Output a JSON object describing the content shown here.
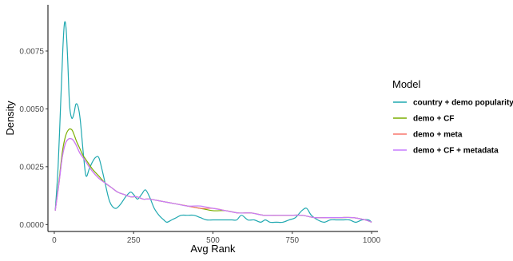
{
  "chart_data": {
    "type": "line",
    "title": "",
    "xlabel": "Avg Rank",
    "ylabel": "Density",
    "xlim": [
      -20,
      1020
    ],
    "ylim": [
      -0.0003,
      0.0095
    ],
    "x_ticks": [
      0,
      250,
      500,
      750,
      1000
    ],
    "y_ticks": [
      0.0,
      0.0025,
      0.005,
      0.0075
    ],
    "x_tick_labels": [
      "0",
      "250",
      "500",
      "750",
      "1000"
    ],
    "y_tick_labels": [
      "0.0000",
      "0.0025",
      "0.0050",
      "0.0075"
    ],
    "grid": false,
    "legend": {
      "title": "Model",
      "position": "right"
    },
    "series": [
      {
        "name": "country + demo popularity",
        "color": "#1FA8B0",
        "x": [
          3,
          12,
          20,
          27,
          32,
          37,
          42,
          48,
          55,
          62,
          68,
          75,
          82,
          92,
          100,
          110,
          120,
          130,
          140,
          150,
          160,
          172,
          182,
          195,
          210,
          225,
          240,
          250,
          262,
          275,
          287,
          300,
          315,
          330,
          345,
          355,
          370,
          385,
          400,
          420,
          440,
          460,
          480,
          500,
          520,
          540,
          560,
          575,
          590,
          610,
          630,
          650,
          665,
          680,
          700,
          720,
          740,
          760,
          780,
          795,
          810,
          830,
          850,
          870,
          890,
          910,
          930,
          950,
          970,
          990,
          1000
        ],
        "y": [
          0.0006,
          0.0025,
          0.0052,
          0.0076,
          0.0087,
          0.0085,
          0.0072,
          0.0052,
          0.0046,
          0.0048,
          0.0052,
          0.0051,
          0.0045,
          0.003,
          0.0021,
          0.0024,
          0.0027,
          0.0029,
          0.0029,
          0.0024,
          0.0018,
          0.0011,
          0.0008,
          0.0007,
          0.0009,
          0.0012,
          0.0014,
          0.0013,
          0.0011,
          0.0013,
          0.0015,
          0.0012,
          0.0007,
          0.0004,
          0.0002,
          0.0001,
          0.0002,
          0.0003,
          0.0004,
          0.0004,
          0.0004,
          0.0003,
          0.0002,
          0.0002,
          0.0002,
          0.0002,
          0.0002,
          0.0002,
          0.0004,
          0.0002,
          0.0002,
          0.0001,
          0.0002,
          0.0001,
          0.0001,
          0.0001,
          0.0002,
          0.0003,
          0.0006,
          0.0007,
          0.0004,
          0.0002,
          0.0001,
          0.0002,
          0.0002,
          0.0002,
          0.0002,
          0.0001,
          0.0002,
          0.0002,
          0.0001
        ]
      },
      {
        "name": "demo + CF",
        "color": "#7CAE00",
        "x": [
          3,
          15,
          25,
          35,
          45,
          55,
          62,
          70,
          80,
          90,
          100,
          120,
          140,
          160,
          180,
          200,
          220,
          240,
          260,
          280,
          300,
          340,
          380,
          420,
          460,
          500,
          540,
          580,
          620,
          660,
          700,
          740,
          780,
          820,
          860,
          900,
          940,
          980,
          1000
        ],
        "y": [
          0.0006,
          0.0019,
          0.0031,
          0.0038,
          0.0041,
          0.0041,
          0.0039,
          0.0036,
          0.0033,
          0.003,
          0.0028,
          0.0024,
          0.0021,
          0.0018,
          0.0016,
          0.0014,
          0.0013,
          0.0012,
          0.0012,
          0.0011,
          0.0011,
          0.001,
          0.0009,
          0.0008,
          0.0007,
          0.0006,
          0.0006,
          0.0005,
          0.0005,
          0.0004,
          0.0004,
          0.0004,
          0.0004,
          0.0003,
          0.0003,
          0.0003,
          0.0003,
          0.0002,
          0.0001
        ]
      },
      {
        "name": "demo + meta",
        "color": "#F8766D",
        "x": [
          3,
          15,
          25,
          35,
          45,
          55,
          62,
          70,
          80,
          90,
          100,
          120,
          140,
          160,
          180,
          200,
          220,
          240,
          260,
          280,
          300,
          340,
          380,
          420,
          460,
          500,
          540,
          580,
          620,
          660,
          700,
          740,
          780,
          820,
          860,
          900,
          940,
          980,
          1000
        ],
        "y": [
          0.0006,
          0.0018,
          0.0029,
          0.0035,
          0.0037,
          0.0037,
          0.0036,
          0.0034,
          0.0031,
          0.0029,
          0.0027,
          0.0023,
          0.002,
          0.0018,
          0.0016,
          0.0014,
          0.0013,
          0.0012,
          0.0012,
          0.0011,
          0.0011,
          0.001,
          0.0009,
          0.0008,
          0.0007,
          0.0007,
          0.0006,
          0.0005,
          0.0005,
          0.0004,
          0.0004,
          0.0004,
          0.0004,
          0.0003,
          0.0003,
          0.0003,
          0.0003,
          0.0002,
          0.0001
        ]
      },
      {
        "name": "demo + CF + metadata",
        "color": "#C77CFF",
        "x": [
          3,
          15,
          25,
          35,
          45,
          55,
          62,
          70,
          80,
          90,
          100,
          120,
          140,
          160,
          180,
          200,
          220,
          240,
          260,
          280,
          300,
          340,
          380,
          420,
          460,
          500,
          540,
          580,
          620,
          660,
          700,
          740,
          780,
          820,
          860,
          900,
          940,
          980,
          1000
        ],
        "y": [
          0.0006,
          0.0018,
          0.0029,
          0.0035,
          0.0037,
          0.0037,
          0.0036,
          0.0034,
          0.0031,
          0.0029,
          0.0027,
          0.0023,
          0.002,
          0.0018,
          0.0016,
          0.0014,
          0.0013,
          0.0012,
          0.0012,
          0.0011,
          0.0011,
          0.001,
          0.0009,
          0.0008,
          0.0008,
          0.0007,
          0.0006,
          0.0005,
          0.0005,
          0.0004,
          0.0004,
          0.0004,
          0.0004,
          0.0003,
          0.0003,
          0.0003,
          0.0003,
          0.0002,
          0.0001
        ]
      }
    ]
  }
}
